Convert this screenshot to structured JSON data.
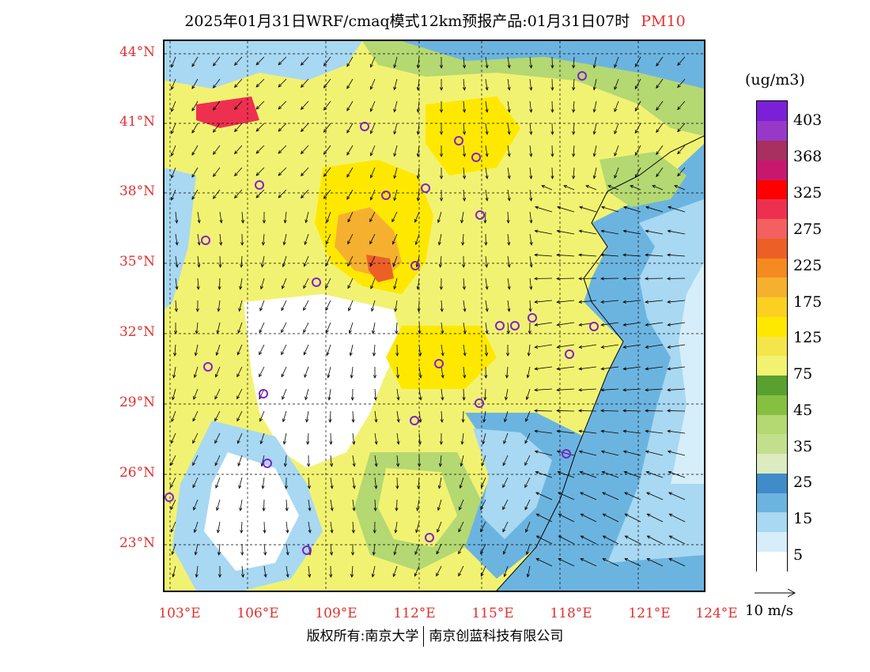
{
  "title": {
    "text": "2025年01月31日WRF/cmaq模式12km预报产品:01月31日07时",
    "pollutant": "PM10"
  },
  "axes": {
    "lat_labels": [
      "44°N",
      "41°N",
      "38°N",
      "35°N",
      "32°N",
      "29°N",
      "26°N",
      "23°N"
    ],
    "lon_labels": [
      "103°E",
      "106°E",
      "109°E",
      "112°E",
      "115°E",
      "118°E",
      "121°E",
      "124°E"
    ]
  },
  "colorbar": {
    "unit": "(ug/m3)",
    "labels": [
      "403",
      "368",
      "325",
      "275",
      "225",
      "175",
      "125",
      "75",
      "45",
      "35",
      "25",
      "15",
      "5"
    ],
    "colors": [
      "#ffffff",
      "#d6eefa",
      "#a8d8f2",
      "#6cb4e0",
      "#3f8cc8",
      "#dcebc0",
      "#c2e08c",
      "#b4d872",
      "#86c040",
      "#5aa030",
      "#f2f272",
      "#f4e64a",
      "#ffe800",
      "#fcd020",
      "#f6b030",
      "#f48a20",
      "#ec6028",
      "#f46060",
      "#ee3050",
      "#ff0000",
      "#c8186e",
      "#a83060",
      "#9838c8",
      "#7c20d8"
    ]
  },
  "wind_reference": {
    "label": "10 m/s"
  },
  "copyright": {
    "left": "版权所有:南京大学",
    "right": "南京创蓝科技有限公司"
  },
  "map_colors": {
    "background": "#f2f272",
    "high_core": "#f6b030",
    "peak": "#ec6028",
    "low_white": "#ffffff",
    "ocean_blue": "#6cb4e0",
    "light_blue": "#a8d8f2",
    "green": "#b4d872",
    "dark_green": "#86c040",
    "yellow": "#ffe800",
    "orange": "#fcd020",
    "station_marker": "#8020d0"
  },
  "icons": {
    "station": "circle-marker-icon",
    "wind": "wind-arrow-icon"
  }
}
